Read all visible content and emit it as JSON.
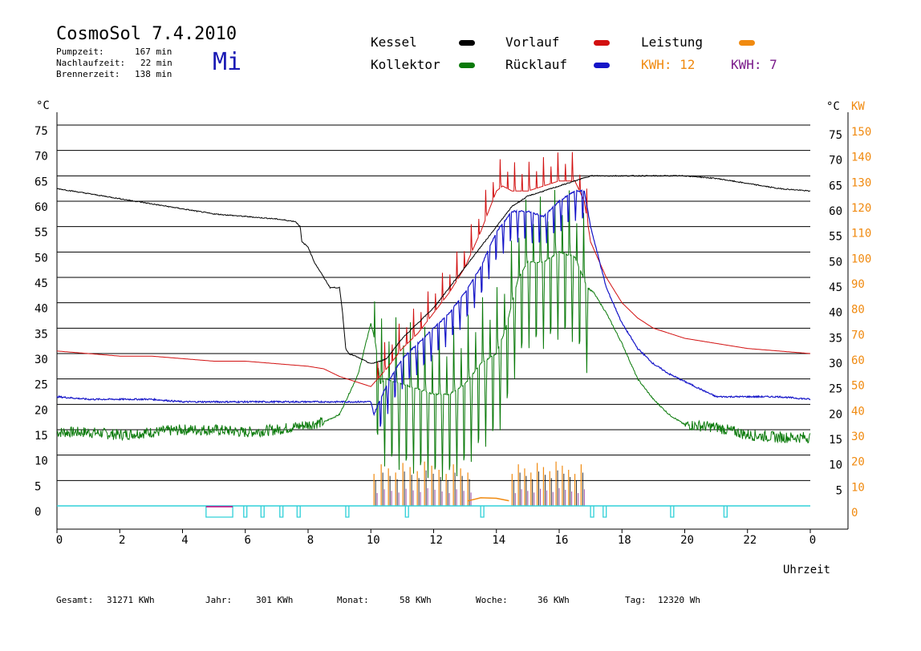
{
  "header": {
    "title": "CosmoSol 7.4.2010",
    "day": "Mi",
    "stats": [
      {
        "label": "Pumpzeit:",
        "value": "167 min"
      },
      {
        "label": "Nachlaufzeit:",
        "value": "22 min"
      },
      {
        "label": "Brennerzeit:",
        "value": "138 min"
      }
    ]
  },
  "legend": {
    "kessel": "Kessel",
    "kollektor": "Kollektor",
    "vorlauf": "Vorlauf",
    "ruecklauf": "Rücklauf",
    "leistung": "Leistung",
    "kwh_orange": "KWH: 12",
    "kwh_purple": "KWH: 7"
  },
  "footer": {
    "gesamt_label": "Gesamt:",
    "gesamt_value": "31271 KWh",
    "jahr_label": "Jahr:",
    "jahr_value": "301 KWh",
    "monat_label": "Monat:",
    "monat_value": "58 KWh",
    "woche_label": "Woche:",
    "woche_value": "36 KWh",
    "tag_label": "Tag:",
    "tag_value": "12320 Wh"
  },
  "chart_data": {
    "type": "line",
    "xlabel": "Uhrzeit",
    "ylabel_left": "°C",
    "ylabel_right_temp": "°C",
    "ylabel_right_power": "KW",
    "xlim": [
      0,
      24
    ],
    "ylim": [
      0,
      75
    ],
    "x_ticks": [
      "0",
      "2",
      "4",
      "6",
      "8",
      "10",
      "12",
      "14",
      "16",
      "18",
      "20",
      "22",
      "0"
    ],
    "x_tick_values": [
      0,
      2,
      4,
      6,
      8,
      10,
      12,
      14,
      16,
      18,
      20,
      22,
      24
    ],
    "y_ticks": [
      0,
      5,
      10,
      15,
      20,
      25,
      30,
      35,
      40,
      45,
      50,
      55,
      60,
      65,
      70,
      75
    ],
    "y_ticks_left": [
      "0",
      "5",
      "10",
      "15",
      "20",
      "25",
      "30",
      "35",
      "40",
      "45",
      "50",
      "55",
      "60",
      "65",
      "70",
      "75"
    ],
    "y_ticks_right_temp": [
      "5",
      "10",
      "15",
      "20",
      "25",
      "30",
      "35",
      "40",
      "45",
      "50",
      "55",
      "60",
      "65",
      "70",
      "75"
    ],
    "y_ticks_right_power": [
      "0",
      "10",
      "20",
      "30",
      "40",
      "50",
      "60",
      "70",
      "80",
      "90",
      "100",
      "110",
      "120",
      "130",
      "140",
      "150"
    ],
    "colors": {
      "kessel": "#000000",
      "kollektor": "#0a7a0a",
      "vorlauf": "#d21010",
      "ruecklauf": "#1515c8",
      "leistung": "#f08a10",
      "kwh_purple": "#7a1a8a",
      "pump": "#30d0d8",
      "pump_alt": "#c8007a"
    },
    "series": [
      {
        "name": "Kessel",
        "color": "#000000",
        "x": [
          0,
          1,
          2,
          3,
          4,
          5,
          6,
          7,
          7.6,
          7.75,
          7.8,
          8,
          8.2,
          8.5,
          8.7,
          9,
          9.1,
          9.2,
          9.3,
          9.5,
          10,
          10.3,
          10.5,
          11,
          11.5,
          12,
          12.5,
          13,
          13.5,
          14,
          14.5,
          15,
          15.5,
          16,
          16.5,
          17,
          18,
          19,
          20,
          21,
          22,
          23,
          24
        ],
        "y": [
          62.5,
          61.5,
          60.5,
          59.5,
          58.5,
          57.5,
          57,
          56.5,
          56,
          55,
          52,
          51,
          48,
          45,
          43,
          43,
          38,
          31,
          30,
          29.5,
          28,
          28.5,
          29,
          33,
          36,
          39,
          43,
          47,
          51,
          55,
          59,
          61,
          62,
          63,
          64,
          65,
          65,
          65,
          65,
          64.5,
          63.5,
          62.5,
          62
        ]
      },
      {
        "name": "Kollektor",
        "color": "#0a7a0a",
        "x": [
          0,
          1,
          2,
          3,
          4,
          5,
          6,
          7,
          8,
          8.5,
          9,
          9.3,
          9.6,
          9.8,
          10,
          10.15,
          10.3,
          10.5,
          11,
          11.5,
          12,
          12.5,
          13,
          13.5,
          14,
          14.3,
          14.5,
          14.7,
          15,
          15.5,
          16,
          16.5,
          16.9,
          17.1,
          17.5,
          18,
          18.5,
          19,
          19.5,
          20,
          21,
          22,
          23,
          24
        ],
        "y": [
          14.5,
          14.5,
          14,
          14.5,
          15,
          15,
          14.5,
          15,
          16,
          16.5,
          18,
          22,
          26,
          31,
          36,
          32,
          24,
          25,
          24,
          23,
          22,
          22,
          24,
          28,
          30,
          35,
          40,
          45,
          48,
          48,
          50,
          49,
          43,
          42,
          38,
          32,
          25,
          21,
          18,
          16,
          15.5,
          14,
          13.5,
          13.5
        ],
        "spikes": {
          "from": 10.1,
          "to": 17,
          "step": 0.23,
          "low": 17,
          "amp": 18
        }
      },
      {
        "name": "Vorlauf",
        "color": "#d21010",
        "x": [
          0,
          1,
          2,
          3,
          4,
          5,
          6,
          7,
          8,
          8.5,
          9,
          9.5,
          10,
          10.5,
          11,
          11.5,
          12,
          12.5,
          13,
          13.5,
          14,
          14.2,
          14.5,
          15,
          15.5,
          16,
          16.5,
          16.8,
          17,
          17.5,
          18,
          18.5,
          19,
          20,
          21,
          22,
          23,
          24
        ],
        "y": [
          30.5,
          30,
          29.5,
          29.5,
          29,
          28.5,
          28.5,
          28,
          27.5,
          27,
          25.5,
          24.5,
          23.5,
          27,
          31,
          34,
          38,
          42,
          47,
          54,
          62,
          63,
          62,
          62,
          63,
          64,
          64,
          60,
          52,
          45,
          40,
          37,
          35,
          33,
          32,
          31,
          30.5,
          30
        ],
        "spikes": {
          "from": 10.2,
          "to": 16.9,
          "step": 0.23,
          "low": 0,
          "amp": 8
        }
      },
      {
        "name": "Rücklauf",
        "color": "#1515c8",
        "x": [
          0,
          1,
          2,
          3,
          4,
          5,
          6,
          7,
          8,
          9,
          10,
          10.1,
          10.3,
          10.6,
          11,
          11.5,
          12,
          12.5,
          13,
          13.5,
          14,
          14.5,
          15,
          15.5,
          16,
          16.5,
          16.8,
          17,
          17.5,
          18,
          18.5,
          19,
          19.5,
          20,
          21,
          22,
          23,
          24
        ],
        "y": [
          21.5,
          21,
          21,
          21,
          20.5,
          20.5,
          20.5,
          20.5,
          20.5,
          20.5,
          20.5,
          18,
          21,
          25,
          29,
          32,
          35,
          38,
          42,
          47,
          54,
          58,
          58,
          57,
          60,
          62,
          62,
          55,
          43,
          36,
          31,
          28,
          26,
          24.5,
          21.5,
          21.5,
          21.5,
          21
        ],
        "spikes": {
          "from": 10.2,
          "to": 16.9,
          "step": 0.23,
          "low": 6,
          "amp": 0
        }
      },
      {
        "name": "Leistung",
        "color": "#f08a10",
        "axis": "power",
        "segments": [
          [
            10.1,
            13.1,
            0.23,
            0,
            9
          ],
          [
            14.5,
            16.8,
            0.2,
            0,
            9
          ]
        ],
        "base": {
          "x": [
            13.1,
            13.5,
            14,
            14.4
          ],
          "y": [
            1,
            1.6,
            1.5,
            1
          ]
        }
      },
      {
        "name": "Pumpe",
        "color": "#30d0d8",
        "axis": "status",
        "pulses": [
          [
            4.75,
            5.6
          ],
          [
            5.95,
            6.05
          ],
          [
            6.5,
            6.6
          ],
          [
            7.1,
            7.2
          ],
          [
            7.65,
            7.75
          ],
          [
            9.2,
            9.3
          ],
          [
            11.1,
            11.2
          ],
          [
            13.5,
            13.6
          ],
          [
            17.0,
            17.1
          ],
          [
            17.4,
            17.5
          ],
          [
            19.55,
            19.65
          ],
          [
            21.25,
            21.35
          ]
        ]
      }
    ]
  }
}
